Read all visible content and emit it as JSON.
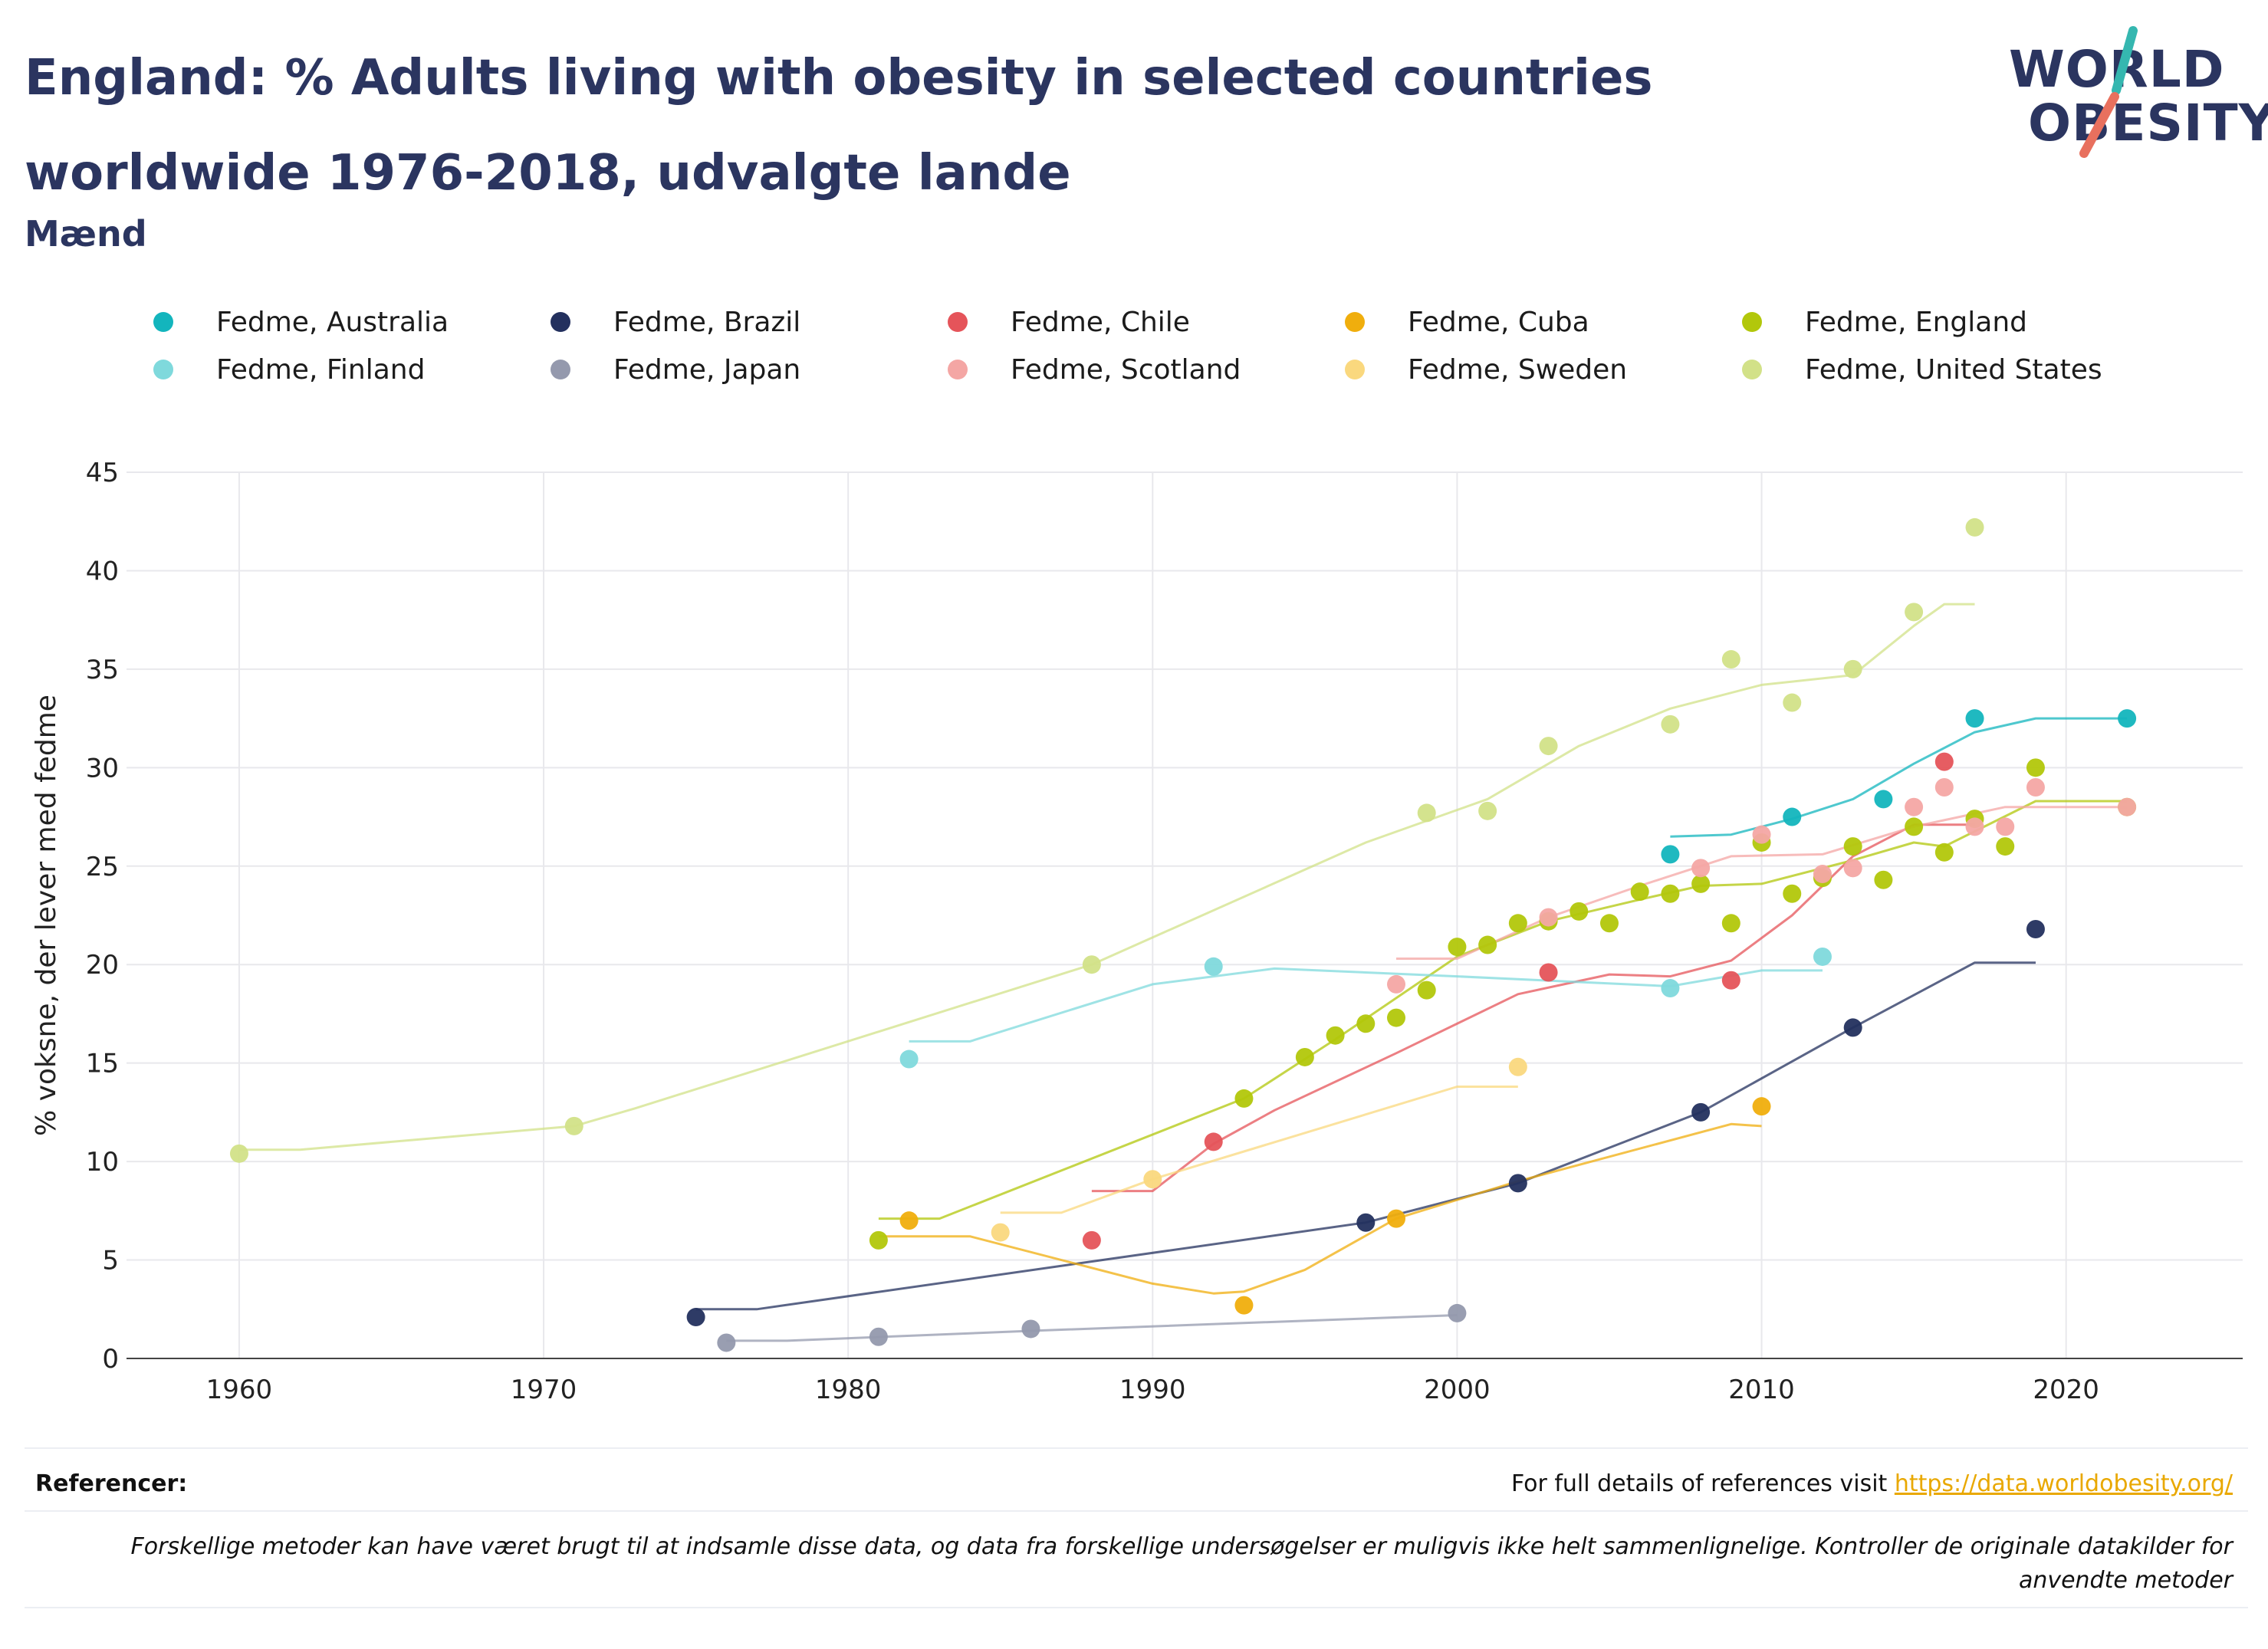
{
  "header": {
    "title": "England: % Adults living with obesity in selected countries worldwide 1976-2018, udvalgte lande",
    "subtitle": "Mænd"
  },
  "logo": {
    "line1": "WORLD",
    "line2": "OBESITY",
    "accent_colors": [
      "#35b7b0",
      "#e8705e"
    ]
  },
  "footer": {
    "references_label": "Referencer:",
    "references_text": "For full details of references visit",
    "references_link": "https://data.worldobesity.org/",
    "disclaimer": "Forskellige metoder kan have været brugt til at indsamle disse data, og data fra forskellige undersøgelser er muligvis ikke helt sammenlignelige. Kontroller de originale datakilder for anvendte metoder"
  },
  "chart_data": {
    "type": "scatter",
    "title": "England: % Adults living with obesity in selected countries worldwide 1976-2018, udvalgte lande",
    "subtitle": "Mænd",
    "ylabel": "% voksne, der lever med fedme",
    "xlabel": "",
    "xlim": [
      1956.3,
      2025.8
    ],
    "ylim": [
      0,
      45
    ],
    "x_ticks": [
      1960,
      1970,
      1980,
      1990,
      2000,
      2010,
      2020
    ],
    "y_ticks": [
      0,
      5,
      10,
      15,
      20,
      25,
      30,
      35,
      40,
      45
    ],
    "grid": true,
    "legend_position": "top",
    "series": [
      {
        "name": "Fedme, Australia",
        "color": "#13b5bd",
        "points": [
          [
            2007,
            25.6
          ],
          [
            2011,
            27.5
          ],
          [
            2014,
            28.4
          ],
          [
            2017,
            32.5
          ],
          [
            2022,
            32.5
          ]
        ],
        "trend": [
          [
            2007,
            26.5
          ],
          [
            2009,
            26.6
          ],
          [
            2011,
            27.4
          ],
          [
            2013,
            28.4
          ],
          [
            2015,
            30.2
          ],
          [
            2017,
            31.8
          ],
          [
            2019,
            32.5
          ],
          [
            2022,
            32.5
          ]
        ]
      },
      {
        "name": "Fedme, Brazil",
        "color": "#23305e",
        "points": [
          [
            1975,
            2.1
          ],
          [
            1997,
            6.9
          ],
          [
            2002,
            8.9
          ],
          [
            2008,
            12.5
          ],
          [
            2013,
            16.8
          ],
          [
            2019,
            21.8
          ]
        ],
        "trend": [
          [
            1975,
            2.5
          ],
          [
            1977,
            2.5
          ],
          [
            1997,
            6.9
          ],
          [
            2002,
            8.9
          ],
          [
            2008,
            12.5
          ],
          [
            2013,
            16.8
          ],
          [
            2017,
            20.1
          ],
          [
            2019,
            20.1
          ]
        ]
      },
      {
        "name": "Fedme, Chile",
        "color": "#e5545a",
        "points": [
          [
            1988,
            6.0
          ],
          [
            1992,
            11.0
          ],
          [
            2003,
            19.6
          ],
          [
            2009,
            19.2
          ],
          [
            2016,
            30.3
          ]
        ],
        "trend": [
          [
            1988,
            8.5
          ],
          [
            1990,
            8.5
          ],
          [
            1992,
            10.9
          ],
          [
            1994,
            12.6
          ],
          [
            1998,
            15.5
          ],
          [
            2002,
            18.5
          ],
          [
            2005,
            19.5
          ],
          [
            2007,
            19.4
          ],
          [
            2009,
            20.2
          ],
          [
            2011,
            22.5
          ],
          [
            2013,
            25.5
          ],
          [
            2015,
            27.1
          ],
          [
            2017,
            27.1
          ]
        ]
      },
      {
        "name": "Fedme, Cuba",
        "color": "#f0ae0d",
        "points": [
          [
            1982,
            7.0
          ],
          [
            1993,
            2.7
          ],
          [
            1998,
            7.1
          ],
          [
            2010,
            12.8
          ]
        ],
        "trend": [
          [
            1981,
            6.2
          ],
          [
            1984,
            6.2
          ],
          [
            1990,
            3.8
          ],
          [
            1992,
            3.3
          ],
          [
            1993,
            3.4
          ],
          [
            1995,
            4.5
          ],
          [
            1998,
            7.1
          ],
          [
            2002,
            9.0
          ],
          [
            2009,
            11.9
          ],
          [
            2010,
            11.8
          ]
        ]
      },
      {
        "name": "Fedme, England",
        "color": "#b2c70b",
        "points": [
          [
            1981,
            6.0
          ],
          [
            1993,
            13.2
          ],
          [
            1995,
            15.3
          ],
          [
            1996,
            16.4
          ],
          [
            1997,
            17.0
          ],
          [
            1998,
            17.3
          ],
          [
            1999,
            18.7
          ],
          [
            2000,
            20.9
          ],
          [
            2001,
            21.0
          ],
          [
            2002,
            22.1
          ],
          [
            2003,
            22.2
          ],
          [
            2004,
            22.7
          ],
          [
            2005,
            22.1
          ],
          [
            2006,
            23.7
          ],
          [
            2007,
            23.6
          ],
          [
            2008,
            24.1
          ],
          [
            2009,
            22.1
          ],
          [
            2010,
            26.2
          ],
          [
            2011,
            23.6
          ],
          [
            2012,
            24.4
          ],
          [
            2013,
            26.0
          ],
          [
            2014,
            24.3
          ],
          [
            2015,
            27.0
          ],
          [
            2016,
            25.7
          ],
          [
            2017,
            27.4
          ],
          [
            2018,
            26.0
          ],
          [
            2019,
            30.0
          ],
          [
            2022,
            28.0
          ]
        ],
        "trend": [
          [
            1981,
            7.1
          ],
          [
            1983,
            7.1
          ],
          [
            1993,
            13.2
          ],
          [
            1996,
            16.2
          ],
          [
            2000,
            20.4
          ],
          [
            2003,
            22.2
          ],
          [
            2006,
            23.3
          ],
          [
            2008,
            24.0
          ],
          [
            2010,
            24.1
          ],
          [
            2013,
            25.3
          ],
          [
            2015,
            26.2
          ],
          [
            2016,
            26.0
          ],
          [
            2019,
            28.3
          ],
          [
            2022,
            28.3
          ]
        ]
      },
      {
        "name": "Fedme, Finland",
        "color": "#7fd9dc",
        "points": [
          [
            1982,
            15.2
          ],
          [
            1992,
            19.9
          ],
          [
            2007,
            18.8
          ],
          [
            2012,
            20.4
          ]
        ],
        "trend": [
          [
            1982,
            16.1
          ],
          [
            1984,
            16.1
          ],
          [
            1990,
            19.0
          ],
          [
            1994,
            19.8
          ],
          [
            2000,
            19.4
          ],
          [
            2007,
            18.9
          ],
          [
            2010,
            19.7
          ],
          [
            2012,
            19.7
          ]
        ]
      },
      {
        "name": "Fedme, Japan",
        "color": "#9499ad",
        "points": [
          [
            1976,
            0.8
          ],
          [
            1981,
            1.1
          ],
          [
            1986,
            1.5
          ],
          [
            2000,
            2.3
          ]
        ],
        "trend": [
          [
            1976,
            0.9
          ],
          [
            1978,
            0.9
          ],
          [
            1986,
            1.4
          ],
          [
            2000,
            2.2
          ]
        ]
      },
      {
        "name": "Fedme, Scotland",
        "color": "#f4a6a4",
        "points": [
          [
            1998,
            19.0
          ],
          [
            2003,
            22.4
          ],
          [
            2008,
            24.9
          ],
          [
            2010,
            26.6
          ],
          [
            2012,
            24.6
          ],
          [
            2013,
            24.9
          ],
          [
            2015,
            28.0
          ],
          [
            2016,
            29.0
          ],
          [
            2017,
            27.0
          ],
          [
            2018,
            27.0
          ],
          [
            2019,
            29.0
          ],
          [
            2022,
            28.0
          ]
        ],
        "trend": [
          [
            1998,
            20.3
          ],
          [
            2000,
            20.3
          ],
          [
            2003,
            22.4
          ],
          [
            2006,
            24.0
          ],
          [
            2009,
            25.5
          ],
          [
            2012,
            25.6
          ],
          [
            2015,
            27.0
          ],
          [
            2018,
            28.0
          ],
          [
            2022,
            28.0
          ]
        ]
      },
      {
        "name": "Fedme, Sweden",
        "color": "#fad87e",
        "points": [
          [
            1985,
            6.4
          ],
          [
            1990,
            9.1
          ],
          [
            2002,
            14.8
          ]
        ],
        "trend": [
          [
            1985,
            7.4
          ],
          [
            1987,
            7.4
          ],
          [
            1990,
            9.1
          ],
          [
            2000,
            13.8
          ],
          [
            2002,
            13.8
          ]
        ]
      },
      {
        "name": "Fedme, United States",
        "color": "#d2e188",
        "points": [
          [
            1960,
            10.4
          ],
          [
            1971,
            11.8
          ],
          [
            1988,
            20.0
          ],
          [
            1999,
            27.7
          ],
          [
            2001,
            27.8
          ],
          [
            2003,
            31.1
          ],
          [
            2007,
            32.2
          ],
          [
            2009,
            35.5
          ],
          [
            2011,
            33.3
          ],
          [
            2013,
            35.0
          ],
          [
            2015,
            37.9
          ],
          [
            2017,
            42.2
          ]
        ],
        "trend": [
          [
            1960,
            10.6
          ],
          [
            1962,
            10.6
          ],
          [
            1971,
            11.8
          ],
          [
            1973,
            12.7
          ],
          [
            1988,
            20.0
          ],
          [
            1997,
            26.2
          ],
          [
            2001,
            28.4
          ],
          [
            2004,
            31.1
          ],
          [
            2007,
            33.0
          ],
          [
            2010,
            34.2
          ],
          [
            2013,
            34.7
          ],
          [
            2015,
            37.2
          ],
          [
            2016,
            38.3
          ],
          [
            2017,
            38.3
          ]
        ]
      }
    ]
  }
}
